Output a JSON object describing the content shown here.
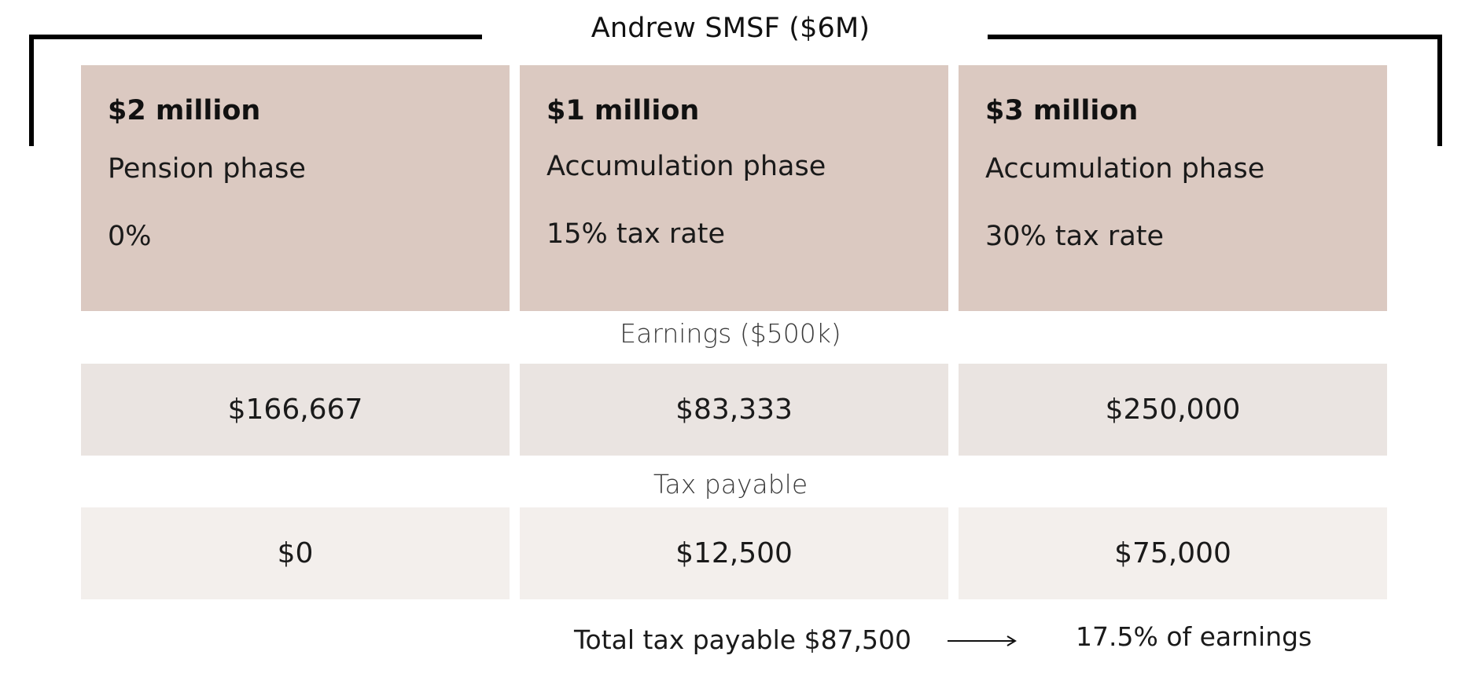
{
  "title": "Andrew SMSF ($6M)",
  "colors": {
    "phase_box": "#dbc9c1",
    "earnings_row": "#eae4e1",
    "tax_row": "#f3efec",
    "bracket": "#000000"
  },
  "phases": [
    {
      "amount": "$2 million",
      "name": "Pension phase",
      "rate": "0%"
    },
    {
      "amount": "$1 million",
      "name": "Accumulation phase",
      "rate": "15% tax rate"
    },
    {
      "amount": "$3 million",
      "name": "Accumulation phase",
      "rate": "30% tax rate"
    }
  ],
  "earnings": {
    "label": "Earnings ($500k)",
    "values": [
      "$166,667",
      "$83,333",
      "$250,000"
    ]
  },
  "tax": {
    "label": "Tax payable",
    "values": [
      "$0",
      "$12,500",
      "$75,000"
    ]
  },
  "total": {
    "label": "Total tax payable $87,500",
    "arrow_icon": "arrow-right-icon",
    "percent": "17.5% of earnings"
  }
}
